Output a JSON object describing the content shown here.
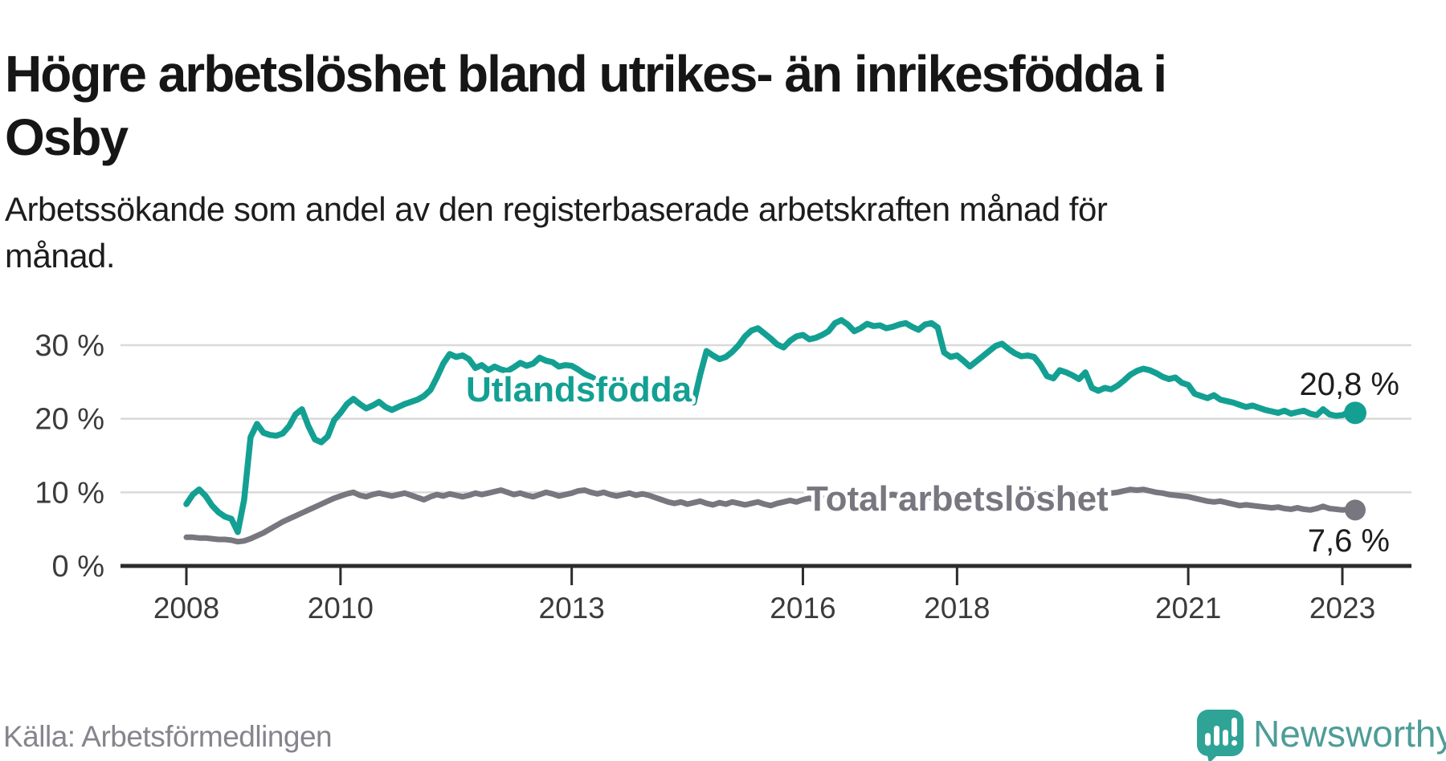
{
  "header": {
    "title_lines": [
      "Högre arbetslöshet bland utrikes- än inrikesfödda i",
      "Osby"
    ],
    "subtitle_lines": [
      "Arbetssökande som andel av den registerbaserade arbetskraften månad för",
      "månad."
    ]
  },
  "footer": {
    "source": "Källa: Arbetsförmedlingen",
    "brand": "Newsworthy",
    "brand_icon": "newsworthy-speech-bubble-barchart-icon",
    "brand_color": "#4d9d97",
    "brand_icon_color": "#2ea396"
  },
  "chart_data": {
    "type": "line",
    "title": "",
    "xlabel": "",
    "ylabel": "",
    "x_start": "2008-01",
    "x_end": "2023-03",
    "x_unit": "month",
    "x_tick_years": [
      2008,
      2010,
      2013,
      2016,
      2018,
      2021,
      2023
    ],
    "y_ticks": [
      {
        "value": 0,
        "label": "0 %"
      },
      {
        "value": 10,
        "label": "10 %"
      },
      {
        "value": 20,
        "label": "20 %"
      },
      {
        "value": 30,
        "label": "30 %"
      }
    ],
    "ylim": [
      0,
      35
    ],
    "grid": true,
    "legend_position": "inline-labels",
    "colors": {
      "axis": "#2b2b2b",
      "gridline": "#d9d9d9",
      "tick_text": "#3b3b3b",
      "value_text": "#1d1d1d"
    },
    "series": [
      {
        "name": "Total arbetslöshet",
        "color": "#78767e",
        "end_value": 7.6,
        "end_label": "7,6 %",
        "values": [
          3.9,
          3.9,
          3.8,
          3.8,
          3.7,
          3.6,
          3.6,
          3.5,
          3.3,
          3.4,
          3.7,
          4.1,
          4.5,
          5.0,
          5.5,
          6.0,
          6.4,
          6.8,
          7.2,
          7.6,
          8.0,
          8.4,
          8.8,
          9.2,
          9.5,
          9.8,
          10.0,
          9.6,
          9.4,
          9.7,
          9.9,
          9.7,
          9.5,
          9.7,
          9.9,
          9.6,
          9.3,
          9.0,
          9.4,
          9.7,
          9.5,
          9.8,
          9.6,
          9.4,
          9.6,
          9.9,
          9.7,
          9.9,
          10.1,
          10.3,
          10.0,
          9.7,
          9.9,
          9.6,
          9.4,
          9.7,
          10.0,
          9.8,
          9.5,
          9.7,
          9.9,
          10.2,
          10.3,
          10.0,
          9.8,
          10.0,
          9.7,
          9.5,
          9.7,
          9.9,
          9.6,
          9.8,
          9.6,
          9.3,
          9.0,
          8.7,
          8.5,
          8.7,
          8.4,
          8.6,
          8.8,
          8.5,
          8.3,
          8.6,
          8.4,
          8.7,
          8.5,
          8.3,
          8.5,
          8.7,
          8.4,
          8.2,
          8.5,
          8.7,
          8.9,
          8.7,
          9.0,
          9.2,
          8.9,
          9.1,
          9.3,
          9.5,
          9.3,
          9.1,
          9.3,
          9.5,
          9.3,
          9.5,
          9.3,
          9.5,
          9.7,
          9.5,
          9.3,
          9.5,
          9.7,
          9.5,
          9.3,
          9.5,
          9.4,
          9.6,
          9.4,
          9.6,
          9.8,
          9.6,
          9.4,
          9.6,
          9.4,
          9.2,
          9.4,
          9.6,
          9.4,
          9.6,
          9.8,
          9.6,
          9.8,
          10.0,
          9.8,
          9.6,
          9.8,
          9.6,
          9.4,
          9.6,
          9.8,
          10.0,
          9.9,
          10.0,
          10.2,
          10.4,
          10.3,
          10.4,
          10.2,
          10.0,
          9.9,
          9.7,
          9.6,
          9.5,
          9.4,
          9.2,
          9.0,
          8.8,
          8.7,
          8.8,
          8.6,
          8.4,
          8.2,
          8.3,
          8.2,
          8.1,
          8.0,
          7.9,
          8.0,
          7.8,
          7.7,
          7.9,
          7.7,
          7.6,
          7.8,
          8.1,
          7.8,
          7.7,
          7.6,
          7.7,
          7.6
        ]
      },
      {
        "name": "Utlandsfödda",
        "color": "#13a093",
        "end_value": 20.8,
        "end_label": "20,8 %",
        "values": [
          8.4,
          9.7,
          10.4,
          9.5,
          8.2,
          7.3,
          6.7,
          6.4,
          4.6,
          9.0,
          17.5,
          19.3,
          18.1,
          17.8,
          17.7,
          18.0,
          19.0,
          20.6,
          21.3,
          19.0,
          17.2,
          16.8,
          17.6,
          19.8,
          20.8,
          22.0,
          22.7,
          22.0,
          21.4,
          21.8,
          22.3,
          21.6,
          21.2,
          21.6,
          22.0,
          22.3,
          22.6,
          23.1,
          23.9,
          25.6,
          27.5,
          28.8,
          28.4,
          28.6,
          28.1,
          26.9,
          27.3,
          26.6,
          27.1,
          26.7,
          26.5,
          27.0,
          27.6,
          27.2,
          27.5,
          28.3,
          27.9,
          27.7,
          27.1,
          27.3,
          27.2,
          26.7,
          26.1,
          25.7,
          25.2,
          25.6,
          25.0,
          24.6,
          24.9,
          24.3,
          24.6,
          24.1,
          24.4,
          24.1,
          24.3,
          24.0,
          23.8,
          23.5,
          24.2,
          22.2,
          26.0,
          29.2,
          28.6,
          28.1,
          28.4,
          29.1,
          30.0,
          31.2,
          32.0,
          32.3,
          31.6,
          30.9,
          30.1,
          29.7,
          30.6,
          31.2,
          31.4,
          30.8,
          31.0,
          31.4,
          31.9,
          33.0,
          33.4,
          32.8,
          31.9,
          32.3,
          32.9,
          32.6,
          32.7,
          32.3,
          32.5,
          32.8,
          33.0,
          32.5,
          32.1,
          32.8,
          33.0,
          32.4,
          29.0,
          28.4,
          28.6,
          27.9,
          27.1,
          27.8,
          28.5,
          29.2,
          29.9,
          30.2,
          29.5,
          28.9,
          28.5,
          28.6,
          28.4,
          27.3,
          25.8,
          25.5,
          26.6,
          26.3,
          25.9,
          25.4,
          26.3,
          24.2,
          23.8,
          24.2,
          24.0,
          24.5,
          25.2,
          26.0,
          26.5,
          26.8,
          26.6,
          26.2,
          25.7,
          25.4,
          25.6,
          24.9,
          24.6,
          23.4,
          23.1,
          22.8,
          23.2,
          22.6,
          22.4,
          22.2,
          21.9,
          21.6,
          21.8,
          21.5,
          21.2,
          21.0,
          20.8,
          21.1,
          20.7,
          20.9,
          21.1,
          20.7,
          20.5,
          21.3,
          20.6,
          20.4,
          20.5,
          20.9,
          20.8
        ]
      }
    ]
  }
}
